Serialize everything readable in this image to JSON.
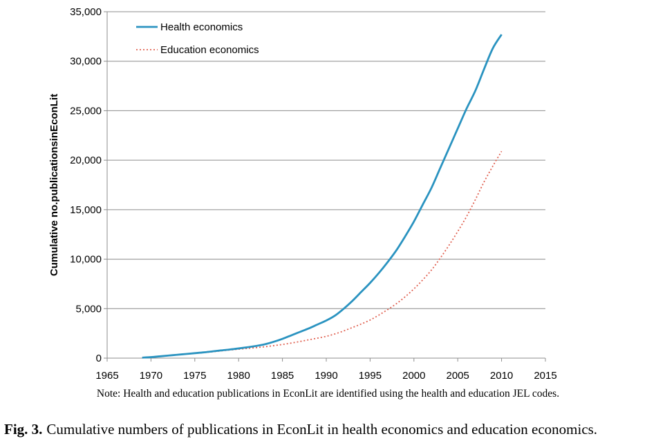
{
  "chart_data": {
    "type": "line",
    "ylabel": "Cumulative no.publicationsinEconLit",
    "xlim": [
      1965,
      2015
    ],
    "ylim": [
      0,
      35000
    ],
    "x_ticks": [
      1965,
      1970,
      1975,
      1980,
      1985,
      1990,
      1995,
      2000,
      2005,
      2010,
      2015
    ],
    "y_ticks": [
      0,
      5000,
      10000,
      15000,
      20000,
      25000,
      30000,
      35000
    ],
    "x_tick_labels": [
      "1965",
      "1970",
      "1975",
      "1980",
      "1985",
      "1990",
      "1995",
      "2000",
      "2005",
      "2010",
      "2015"
    ],
    "y_tick_labels": [
      "0",
      "5,000",
      "10,000",
      "15,000",
      "20,000",
      "25,000",
      "30,000",
      "35,000"
    ],
    "grid": "horizontal",
    "legend_position": "top-left",
    "series": [
      {
        "name": "Health economics",
        "color": "#2a93c0",
        "style": "solid",
        "x": [
          1969,
          1970,
          1971,
          1972,
          1973,
          1974,
          1975,
          1976,
          1977,
          1978,
          1979,
          1980,
          1981,
          1982,
          1983,
          1984,
          1985,
          1986,
          1987,
          1988,
          1989,
          1990,
          1991,
          1992,
          1993,
          1994,
          1995,
          1996,
          1997,
          1998,
          1999,
          2000,
          2001,
          2002,
          2003,
          2004,
          2005,
          2006,
          2007,
          2008,
          2009,
          2010
        ],
        "y": [
          50,
          100,
          180,
          260,
          340,
          420,
          500,
          580,
          680,
          780,
          870,
          980,
          1100,
          1230,
          1400,
          1650,
          1950,
          2300,
          2650,
          3000,
          3400,
          3800,
          4300,
          5000,
          5800,
          6700,
          7600,
          8600,
          9700,
          10900,
          12300,
          13800,
          15500,
          17200,
          19200,
          21200,
          23200,
          25200,
          27000,
          29200,
          31300,
          32700
        ]
      },
      {
        "name": "Education economics",
        "color": "#e06050",
        "style": "dotted",
        "x": [
          1969,
          1970,
          1971,
          1972,
          1973,
          1974,
          1975,
          1976,
          1977,
          1978,
          1979,
          1980,
          1981,
          1982,
          1983,
          1984,
          1985,
          1986,
          1987,
          1988,
          1989,
          1990,
          1991,
          1992,
          1993,
          1994,
          1995,
          1996,
          1997,
          1998,
          1999,
          2000,
          2001,
          2002,
          2003,
          2004,
          2005,
          2006,
          2007,
          2008,
          2009,
          2010
        ],
        "y": [
          50,
          100,
          170,
          240,
          320,
          400,
          480,
          560,
          640,
          730,
          820,
          900,
          980,
          1060,
          1150,
          1260,
          1380,
          1520,
          1680,
          1850,
          2020,
          2200,
          2450,
          2750,
          3100,
          3450,
          3850,
          4350,
          4900,
          5500,
          6200,
          7000,
          7900,
          8900,
          10100,
          11400,
          12800,
          14300,
          16000,
          17800,
          19400,
          20900
        ]
      }
    ]
  },
  "note": "Note: Health and education publications in EconLit are identified using the health and education JEL codes.",
  "caption": {
    "label": "Fig. 3.",
    "text": "Cumulative numbers of publications in EconLit in health economics and education economics."
  }
}
